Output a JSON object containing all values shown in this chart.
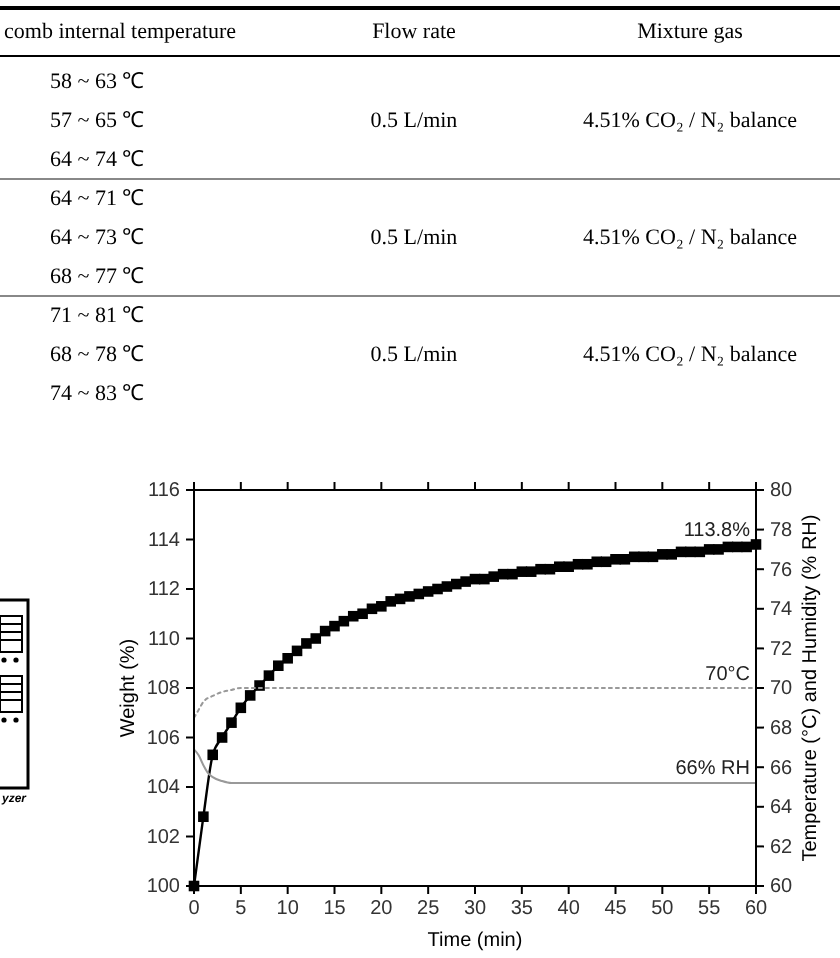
{
  "chart_data": [
    {
      "type": "other",
      "annotations": [
        "comb internal temperature",
        "Flow rate",
        "Mixture gas",
        "58 ~ 63 ℃",
        "57 ~ 65 ℃",
        "64 ~ 74 ℃",
        "0.5 L/min",
        "4.51% CO₂ / N₂ balance",
        "64 ~ 71 ℃",
        "64 ~ 73 ℃",
        "68 ~ 77 ℃",
        "0.5 L/min",
        "4.51% CO₂ / N₂ balance",
        "71 ~ 81 ℃",
        "68 ~ 78 ℃",
        "74 ~ 83 ℃",
        "0.5 L/min",
        "4.51% CO₂ / N₂ balance"
      ]
    },
    {
      "type": "line",
      "xlabel": "Time (min)",
      "ylabel": "Weight (%)",
      "y2label": "Temperature (°C) and Humidity (% RH)",
      "xlim": [
        0,
        60
      ],
      "xticks": [
        0,
        5,
        10,
        15,
        20,
        25,
        30,
        35,
        40,
        45,
        50,
        55,
        60
      ],
      "ylim": [
        100,
        116
      ],
      "yticks": [
        100,
        102,
        104,
        106,
        108,
        110,
        112,
        114,
        116
      ],
      "y2lim": [
        60,
        80
      ],
      "y2ticks": [
        60,
        62,
        64,
        66,
        68,
        70,
        72,
        74,
        76,
        78,
        80
      ],
      "series": [
        {
          "color": "#000000",
          "marker": "square",
          "line_style": "solid",
          "x": [
            0,
            1,
            2,
            3,
            4,
            5,
            6,
            7,
            8,
            9,
            10,
            11,
            12,
            13,
            14,
            15,
            16,
            17,
            18,
            19,
            20,
            21,
            22,
            23,
            24,
            25,
            26,
            27,
            28,
            29,
            30,
            31,
            32,
            33,
            34,
            35,
            36,
            37,
            38,
            39,
            40,
            41,
            42,
            43,
            44,
            45,
            46,
            47,
            48,
            49,
            50,
            51,
            52,
            53,
            54,
            55,
            56,
            57,
            58,
            59,
            60
          ],
          "values": [
            100,
            102.8,
            105.3,
            106.0,
            106.6,
            107.2,
            107.7,
            108.1,
            108.5,
            108.9,
            109.2,
            109.5,
            109.8,
            110.0,
            110.3,
            110.5,
            110.7,
            110.9,
            111.0,
            111.2,
            111.3,
            111.5,
            111.6,
            111.7,
            111.8,
            111.9,
            112.0,
            112.1,
            112.2,
            112.3,
            112.4,
            112.4,
            112.5,
            112.6,
            112.6,
            112.7,
            112.7,
            112.8,
            112.8,
            112.9,
            112.9,
            113.0,
            113.0,
            113.1,
            113.1,
            113.2,
            113.2,
            113.3,
            113.3,
            113.3,
            113.4,
            113.4,
            113.5,
            113.5,
            113.5,
            113.6,
            113.6,
            113.7,
            113.7,
            113.7,
            113.8
          ]
        },
        {
          "color": "#999999",
          "marker": "none",
          "line_style": "dotted",
          "axis": "y2",
          "x": [
            0,
            0.5,
            1,
            2,
            3,
            4,
            5,
            7,
            10,
            20,
            40,
            60
          ],
          "values": [
            68.5,
            68.9,
            69.3,
            69.6,
            69.8,
            69.9,
            70,
            70,
            70,
            70,
            70,
            70
          ]
        },
        {
          "color": "#999999",
          "marker": "none",
          "line_style": "solid",
          "axis": "y2",
          "x": [
            0,
            0.5,
            1,
            1.5,
            2,
            3,
            4,
            5,
            10,
            20,
            40,
            60
          ],
          "values": [
            66.9,
            66.6,
            66.1,
            65.7,
            65.5,
            65.3,
            65.2,
            65.2,
            65.2,
            65.2,
            65.2,
            65.2
          ]
        }
      ],
      "annotations": [
        {
          "text": "113.8%",
          "y": 113.8
        },
        {
          "text": "70°C",
          "y": 108
        },
        {
          "text": "66% RH",
          "y": 104.2
        },
        "yzer"
      ]
    }
  ]
}
